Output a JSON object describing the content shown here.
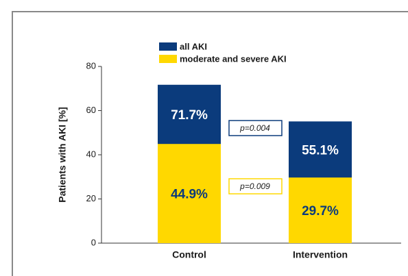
{
  "chart_data": {
    "type": "bar",
    "y_label": "Patients with AKI [%]",
    "categories": [
      "Control",
      "Intervention"
    ],
    "series": [
      {
        "name": "all AKI",
        "color": "#0b3b7c",
        "label_color": "#ffffff",
        "values": [
          71.7,
          55.1
        ],
        "value_labels": [
          "71.7%",
          "55.1%"
        ]
      },
      {
        "name": "moderate and severe AKI",
        "color": "#ffd800",
        "label_color": "#0b3b7c",
        "values": [
          44.9,
          29.7
        ],
        "value_labels": [
          "44.9%",
          "29.7%"
        ]
      }
    ],
    "annotations": [
      {
        "text": "p=0.004",
        "color": "#0b3b7c"
      },
      {
        "text": "p=0.009",
        "color": "#ffd800"
      }
    ],
    "ylim": [
      0,
      80
    ],
    "yticks": [
      0,
      20,
      40,
      60,
      80
    ]
  }
}
